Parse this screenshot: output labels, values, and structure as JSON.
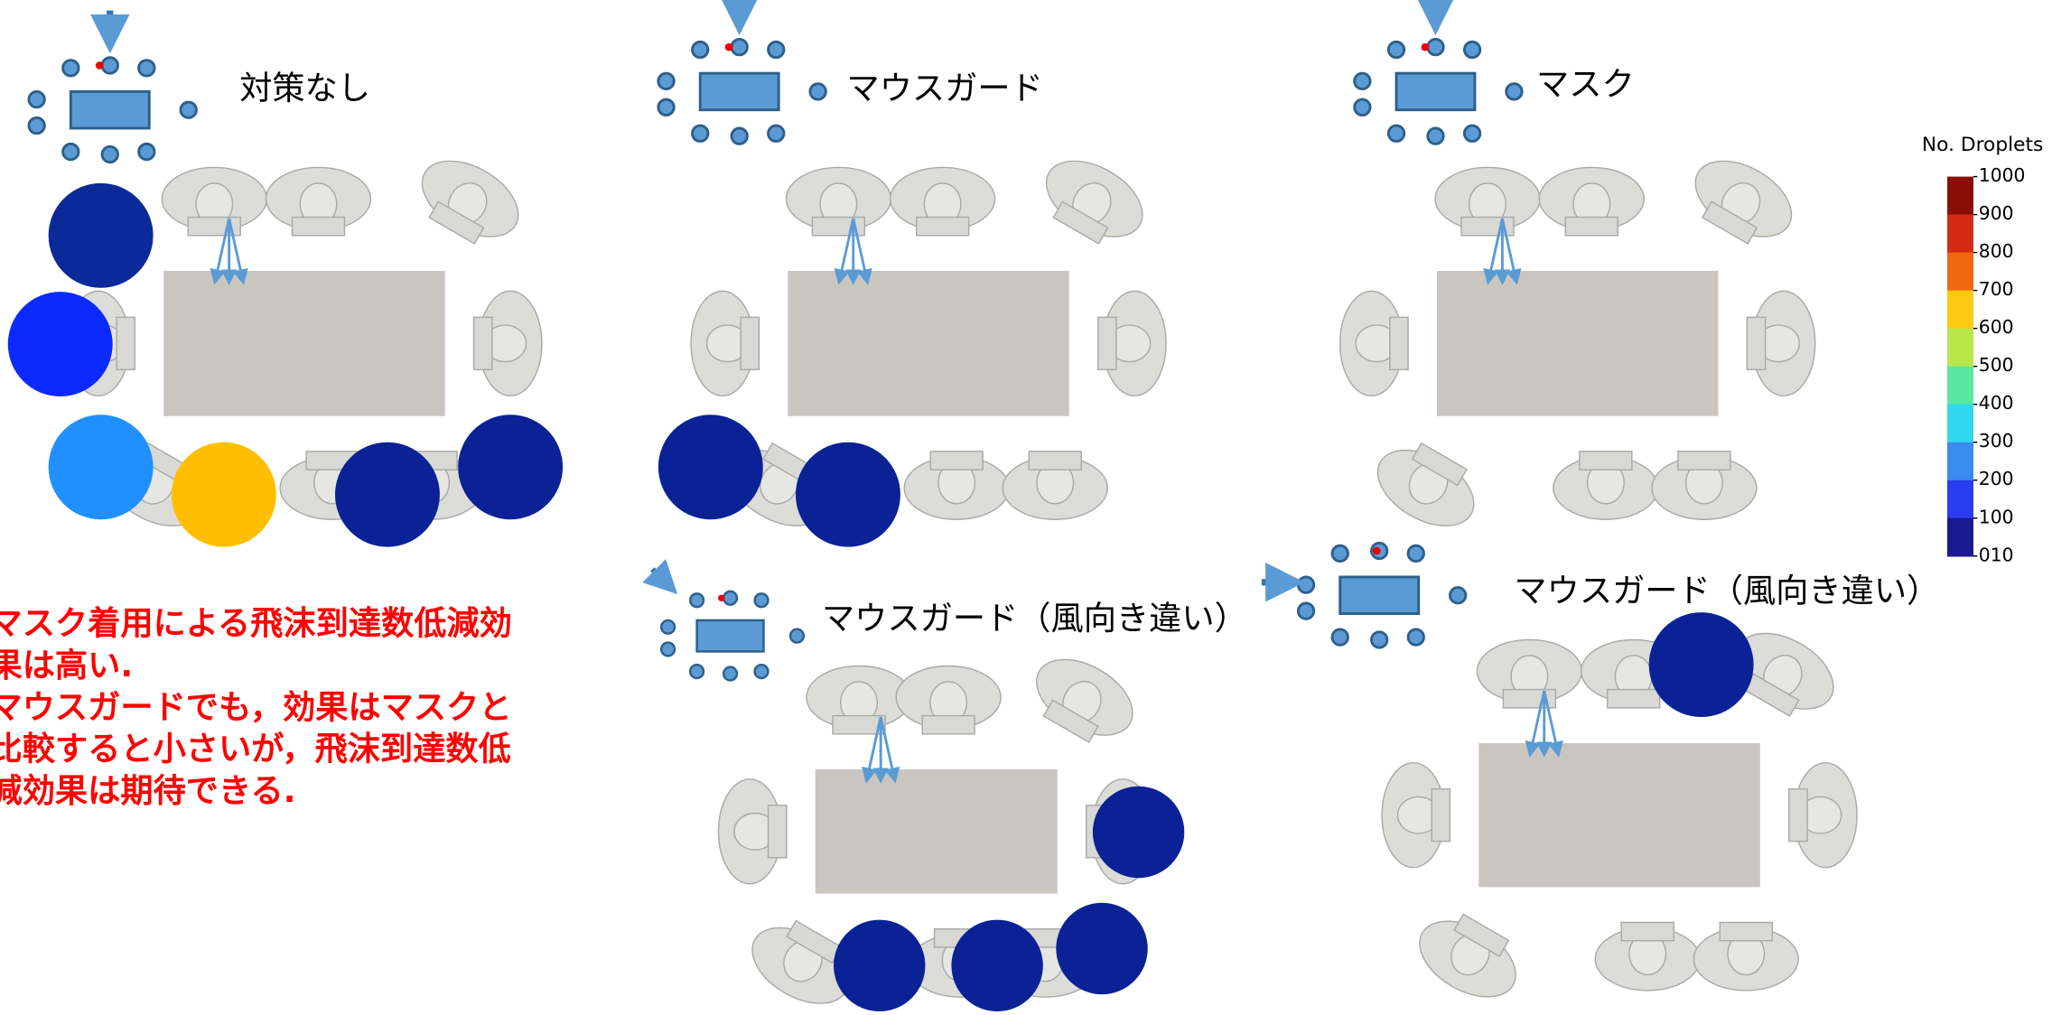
{
  "panels": [
    {
      "title": "対策なし"
    },
    {
      "title": "マウスガード"
    },
    {
      "title": "マスク"
    },
    {
      "title": "マウスガード（風向き違い）"
    },
    {
      "title": "マウスガード（風向き違い）"
    }
  ],
  "conclusion": {
    "lines": [
      "マスク着用による飛沫到達数低減効",
      "果は高い.",
      "マウスガードでも，効果はマスクと",
      "比較すると小さいが，飛沫到達数低",
      "減効果は期待できる."
    ]
  },
  "colorbar": {
    "title": "No. Droplets",
    "labels": [
      "1000",
      "900",
      "800",
      "700",
      "600",
      "500",
      "400",
      "300",
      "200",
      "100",
      "010"
    ]
  }
}
